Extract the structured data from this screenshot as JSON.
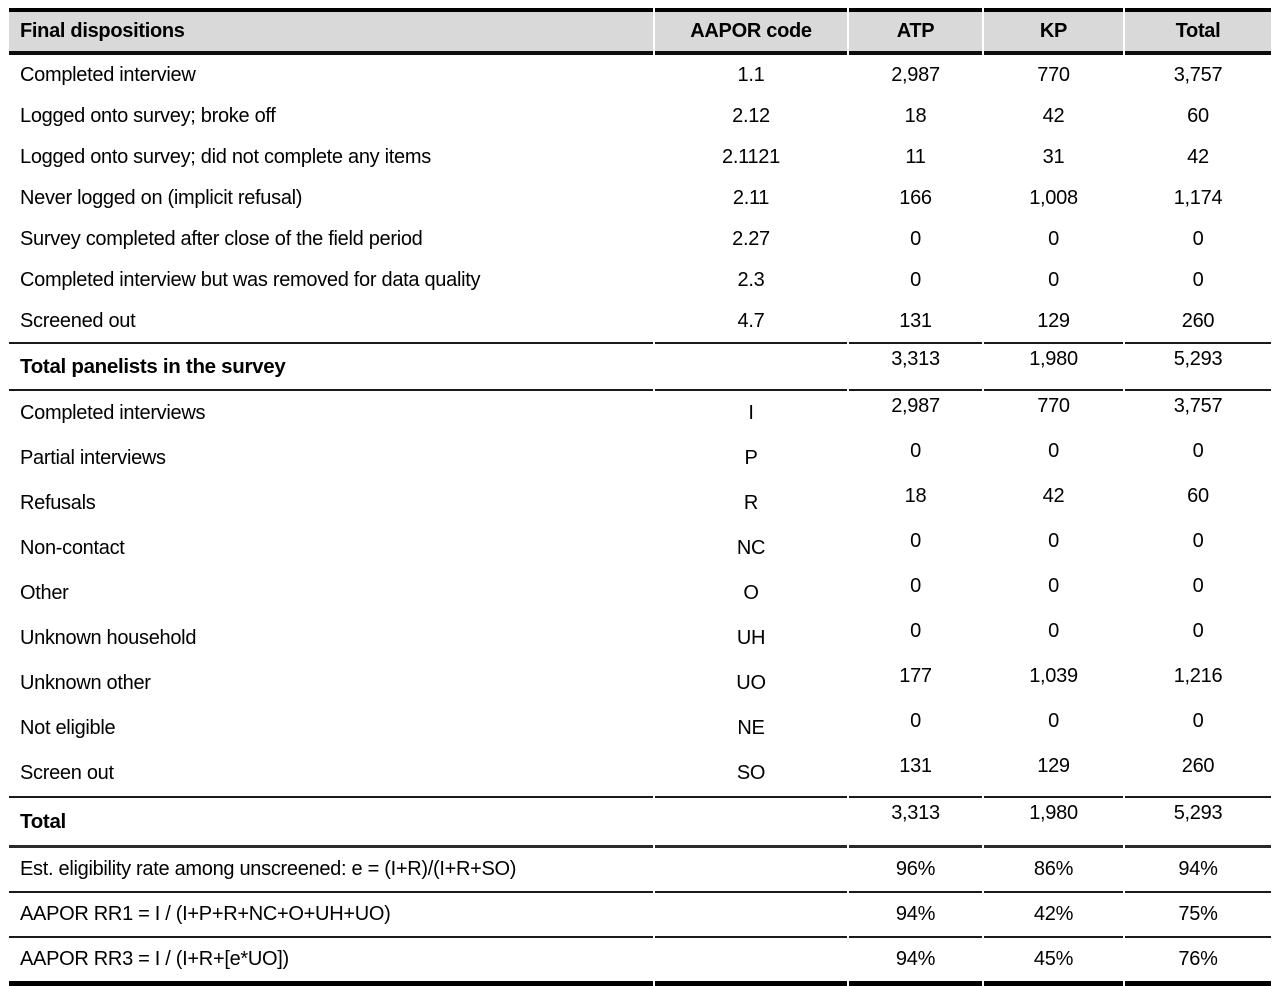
{
  "header": {
    "final_dispositions": "Final dispositions",
    "aapor_code": "AAPOR code",
    "atp": "ATP",
    "kp": "KP",
    "total": "Total"
  },
  "dispositions": [
    {
      "label": "Completed interview",
      "code": "1.1",
      "atp": "2,987",
      "kp": "770",
      "total": "3,757"
    },
    {
      "label": "Logged onto survey; broke off",
      "code": "2.12",
      "atp": "18",
      "kp": "42",
      "total": "60"
    },
    {
      "label": "Logged onto survey; did not complete any items",
      "code": "2.1121",
      "atp": "11",
      "kp": "31",
      "total": "42"
    },
    {
      "label": "Never logged on (implicit refusal)",
      "code": "2.11",
      "atp": "166",
      "kp": "1,008",
      "total": "1,174"
    },
    {
      "label": "Survey completed after close of the field period",
      "code": "2.27",
      "atp": "0",
      "kp": "0",
      "total": "0"
    },
    {
      "label": "Completed interview but was removed for data quality",
      "code": "2.3",
      "atp": "0",
      "kp": "0",
      "total": "0"
    },
    {
      "label": "Screened out",
      "code": "4.7",
      "atp": "131",
      "kp": "129",
      "total": "260"
    }
  ],
  "total_panelists": {
    "label": "Total panelists in the survey",
    "code": "",
    "atp": "3,313",
    "kp": "1,980",
    "total": "5,293"
  },
  "aapor_categories": [
    {
      "label": "Completed interviews",
      "code": "I",
      "atp": "2,987",
      "kp": "770",
      "total": "3,757"
    },
    {
      "label": "Partial interviews",
      "code": "P",
      "atp": "0",
      "kp": "0",
      "total": "0"
    },
    {
      "label": "Refusals",
      "code": "R",
      "atp": "18",
      "kp": "42",
      "total": "60"
    },
    {
      "label": "Non-contact",
      "code": "NC",
      "atp": "0",
      "kp": "0",
      "total": "0"
    },
    {
      "label": "Other",
      "code": "O",
      "atp": "0",
      "kp": "0",
      "total": "0"
    },
    {
      "label": "Unknown household",
      "code": "UH",
      "atp": "0",
      "kp": "0",
      "total": "0"
    },
    {
      "label": "Unknown other",
      "code": "UO",
      "atp": "177",
      "kp": "1,039",
      "total": "1,216"
    },
    {
      "label": "Not eligible",
      "code": "NE",
      "atp": "0",
      "kp": "0",
      "total": "0"
    },
    {
      "label": "Screen out",
      "code": "SO",
      "atp": "131",
      "kp": "129",
      "total": "260"
    }
  ],
  "grand_total": {
    "label": "Total",
    "code": "",
    "atp": "3,313",
    "kp": "1,980",
    "total": "5,293"
  },
  "rates": [
    {
      "label": "Est. eligibility rate among unscreened: e = (I+R)/(I+R+SO)",
      "code": "",
      "atp": "96%",
      "kp": "86%",
      "total": "94%"
    },
    {
      "label": "AAPOR RR1 = I / (I+P+R+NC+O+UH+UO)",
      "code": "",
      "atp": "94%",
      "kp": "42%",
      "total": "75%"
    },
    {
      "label": "AAPOR RR3 = I / (I+R+[e*UO])",
      "code": "",
      "atp": "94%",
      "kp": "45%",
      "total": "76%"
    }
  ],
  "colors": {
    "header_bg": "#d9d9d9",
    "rule": "#1a1a1a",
    "text": "#000000"
  }
}
